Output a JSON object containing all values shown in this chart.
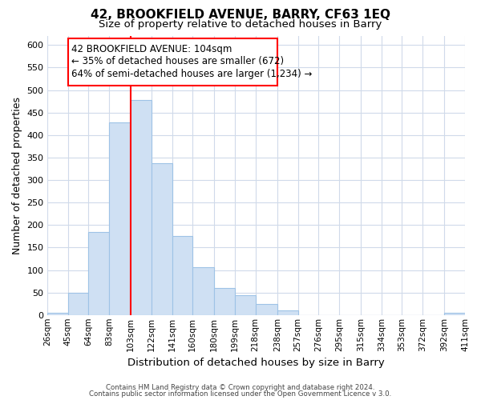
{
  "title1": "42, BROOKFIELD AVENUE, BARRY, CF63 1EQ",
  "title2": "Size of property relative to detached houses in Barry",
  "xlabel": "Distribution of detached houses by size in Barry",
  "ylabel": "Number of detached properties",
  "bin_edges": [
    26,
    45,
    64,
    83,
    103,
    122,
    141,
    160,
    180,
    199,
    218,
    238,
    257,
    276,
    295,
    315,
    334,
    353,
    372,
    392,
    411
  ],
  "bar_heights": [
    5,
    50,
    185,
    428,
    477,
    337,
    175,
    107,
    60,
    44,
    25,
    10,
    0,
    0,
    0,
    0,
    0,
    0,
    0,
    5
  ],
  "bar_color": "#cfe0f3",
  "bar_edge_color": "#9ec3e6",
  "property_line_x": 103,
  "ylim": [
    0,
    620
  ],
  "yticks": [
    0,
    50,
    100,
    150,
    200,
    250,
    300,
    350,
    400,
    450,
    500,
    550,
    600
  ],
  "tick_labels": [
    "26sqm",
    "45sqm",
    "64sqm",
    "83sqm",
    "103sqm",
    "122sqm",
    "141sqm",
    "160sqm",
    "180sqm",
    "199sqm",
    "218sqm",
    "238sqm",
    "257sqm",
    "276sqm",
    "295sqm",
    "315sqm",
    "334sqm",
    "353sqm",
    "372sqm",
    "392sqm",
    "411sqm"
  ],
  "annotation_title": "42 BROOKFIELD AVENUE: 104sqm",
  "annotation_line1": "← 35% of detached houses are smaller (672)",
  "annotation_line2": "64% of semi-detached houses are larger (1,234) →",
  "footnote1": "Contains HM Land Registry data © Crown copyright and database right 2024.",
  "footnote2": "Contains public sector information licensed under the Open Government Licence v 3.0.",
  "grid_color": "#d0daea",
  "background_color": "#ffffff"
}
